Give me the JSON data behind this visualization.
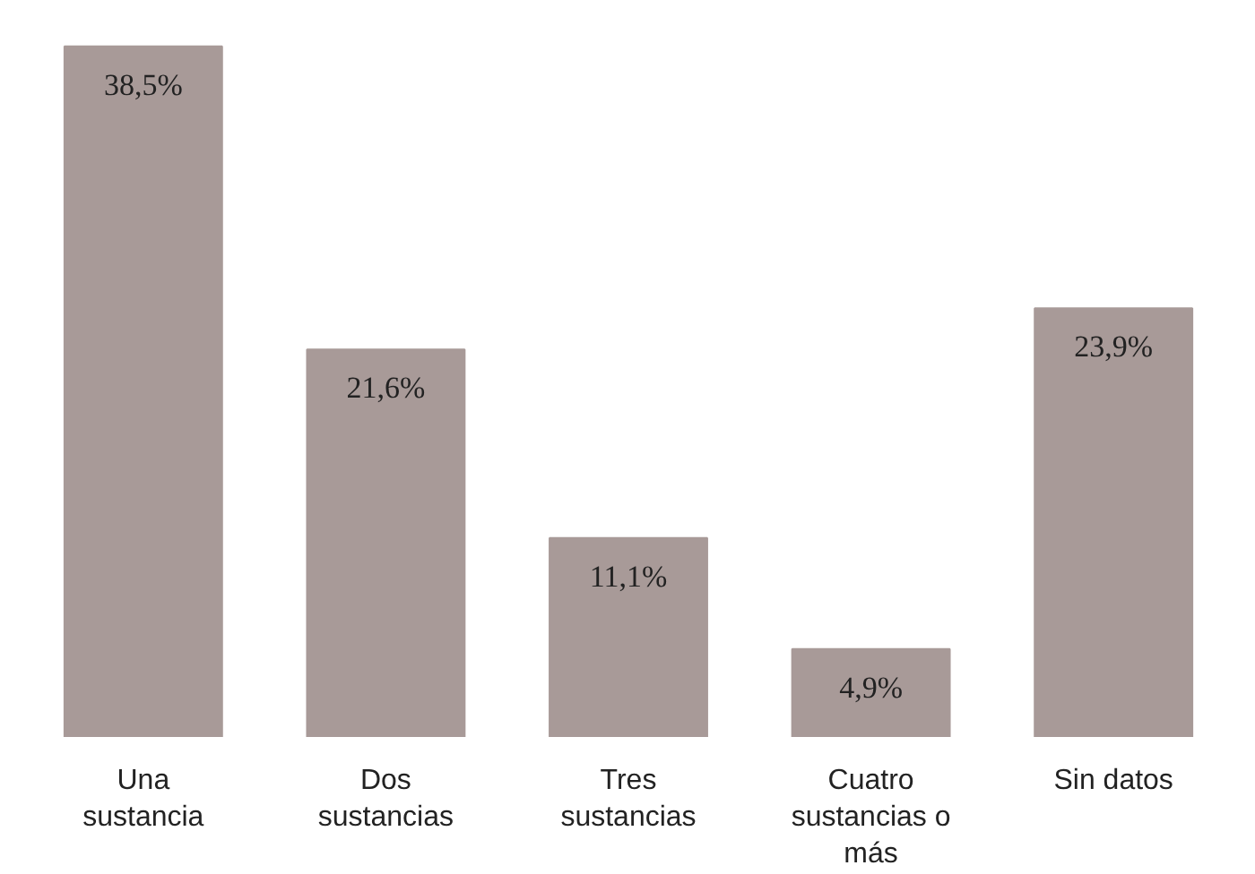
{
  "chart_data": {
    "type": "bar",
    "categories": [
      "Una sustancia",
      "Dos sustancias",
      "Tres sustancias",
      "Cuatro sustancias o más",
      "Sin datos"
    ],
    "values": [
      38.5,
      21.6,
      11.1,
      4.9,
      23.9
    ],
    "value_labels": [
      "38,5%",
      "21,6%",
      "11,1%",
      "4,9%",
      "23,9%"
    ],
    "color": "#a89a98"
  }
}
